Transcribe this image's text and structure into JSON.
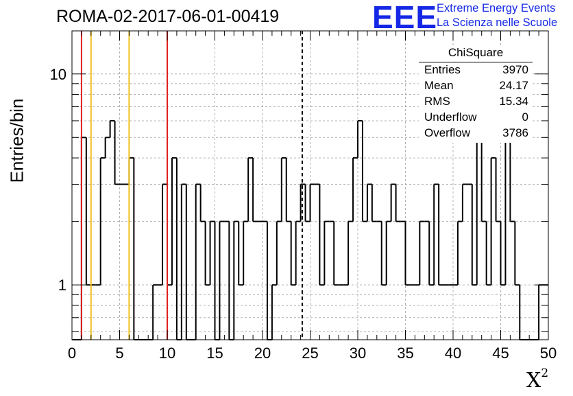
{
  "header": {
    "title": "ROMA-02-2017-06-01-00419",
    "logo_letters": "EEE",
    "logo_line1": "Extreme Energy Events",
    "logo_line2": "La Scienza nelle Scuole"
  },
  "stats": {
    "title": "ChiSquare",
    "rows": [
      {
        "label": "Entries",
        "value": "3970"
      },
      {
        "label": "Mean",
        "value": "24.17"
      },
      {
        "label": "RMS",
        "value": "15.34"
      },
      {
        "label": "Underflow",
        "value": "0"
      },
      {
        "label": "Overflow",
        "value": "3786"
      }
    ]
  },
  "colors": {
    "logo": "#1428e6",
    "red_line": "#e02020",
    "orange_line": "#f0c020",
    "histogram": "#000000",
    "grid": "#b0b0b0"
  },
  "chart_data": {
    "type": "histogram",
    "xlabel": "X",
    "xlabel_superscript": "2",
    "ylabel": "Entries/bin",
    "xlim": [
      0,
      50
    ],
    "ylim": [
      0.55,
      16
    ],
    "yscale": "log",
    "bin_width": 0.5,
    "x_ticks": [
      0,
      5,
      10,
      15,
      20,
      25,
      30,
      35,
      40,
      45,
      50
    ],
    "y_ticks": [
      1,
      10
    ],
    "grid": true,
    "values": [
      0,
      0,
      5,
      1,
      1,
      1,
      4,
      5,
      6,
      3,
      3,
      3,
      4,
      0,
      0,
      0,
      0,
      1,
      1,
      3,
      1,
      4,
      0,
      3,
      0,
      0,
      3,
      2,
      1,
      2,
      0,
      2,
      2,
      0,
      2,
      1,
      2,
      4,
      2,
      2,
      2,
      0,
      1,
      2,
      4,
      2,
      1,
      2,
      3,
      2,
      3,
      3,
      1,
      2,
      2,
      1,
      1,
      1,
      2,
      4,
      6,
      2,
      3,
      2,
      2,
      1,
      2,
      3,
      2,
      2,
      1,
      1,
      1,
      2,
      2,
      1,
      3,
      1,
      1,
      1,
      1,
      2,
      3,
      3,
      1,
      9,
      2,
      1,
      4,
      2,
      1,
      7,
      2,
      1,
      0,
      0,
      0,
      0,
      1,
      1
    ],
    "vertical_lines": [
      {
        "x": 1,
        "color": "red"
      },
      {
        "x": 2,
        "color": "orange"
      },
      {
        "x": 6,
        "color": "orange"
      },
      {
        "x": 10,
        "color": "red"
      },
      {
        "x": 24.17,
        "color": "black",
        "style": "dashed"
      }
    ]
  }
}
